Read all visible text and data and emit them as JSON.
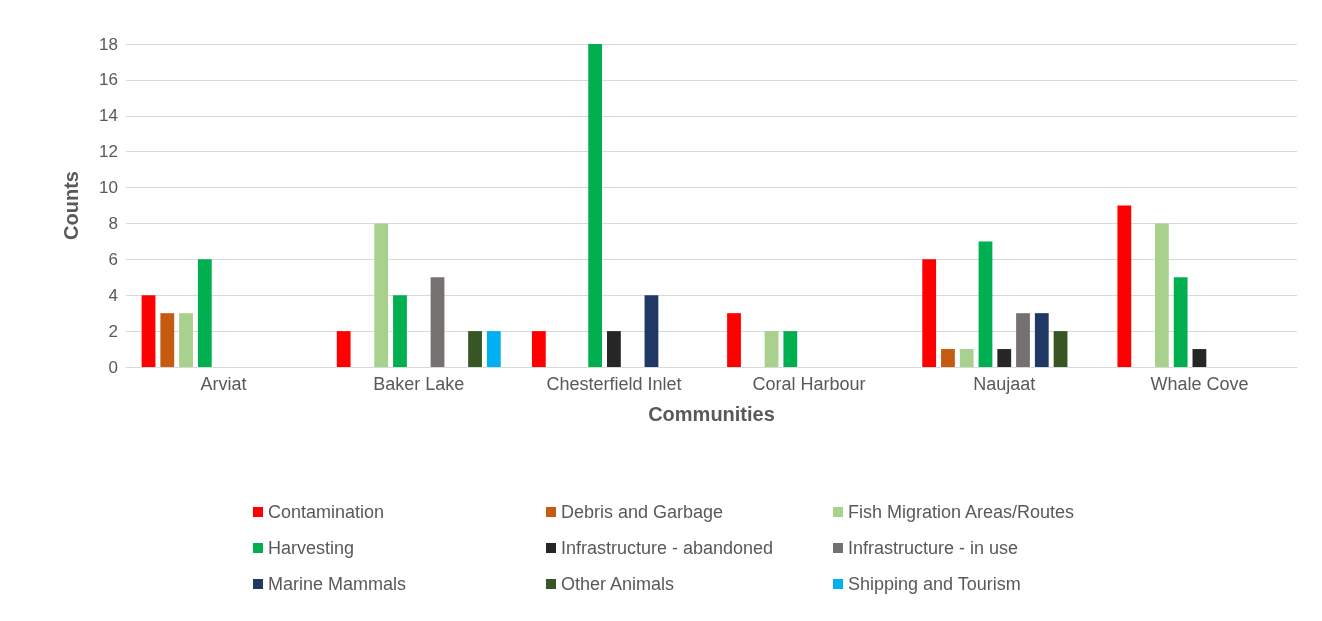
{
  "chart_data": {
    "type": "bar",
    "xlabel": "Communities",
    "ylabel": "Counts",
    "categories": [
      "Arviat",
      "Baker Lake",
      "Chesterfield Inlet",
      "Coral Harbour",
      "Naujaat",
      "Whale Cove"
    ],
    "series": [
      {
        "name": "Contamination",
        "color": "#ff0000",
        "values": [
          4,
          2,
          2,
          3,
          6,
          9
        ]
      },
      {
        "name": "Debris and Garbage",
        "color": "#c55a11",
        "values": [
          3,
          0,
          0,
          0,
          1,
          0
        ]
      },
      {
        "name": "Fish Migration Areas/Routes",
        "color": "#a9d18e",
        "values": [
          3,
          8,
          0,
          2,
          1,
          8
        ]
      },
      {
        "name": "Harvesting",
        "color": "#00b050",
        "values": [
          6,
          4,
          18,
          2,
          7,
          5
        ]
      },
      {
        "name": "Infrastructure - abandoned",
        "color": "#262626",
        "values": [
          0,
          0,
          2,
          0,
          1,
          1
        ]
      },
      {
        "name": "Infrastructure - in use",
        "color": "#767171",
        "values": [
          0,
          5,
          0,
          0,
          3,
          0
        ]
      },
      {
        "name": "Marine Mammals",
        "color": "#203864",
        "values": [
          0,
          0,
          4,
          0,
          3,
          0
        ]
      },
      {
        "name": "Other Animals",
        "color": "#375623",
        "values": [
          0,
          2,
          0,
          0,
          2,
          0
        ]
      },
      {
        "name": "Shipping and Tourism",
        "color": "#00b0f0",
        "values": [
          0,
          2,
          0,
          0,
          0,
          0
        ]
      }
    ],
    "ylim": [
      0,
      18
    ],
    "yticks": [
      0,
      2,
      4,
      6,
      8,
      10,
      12,
      14,
      16,
      18
    ],
    "grid": "y",
    "legend": "bottom"
  }
}
